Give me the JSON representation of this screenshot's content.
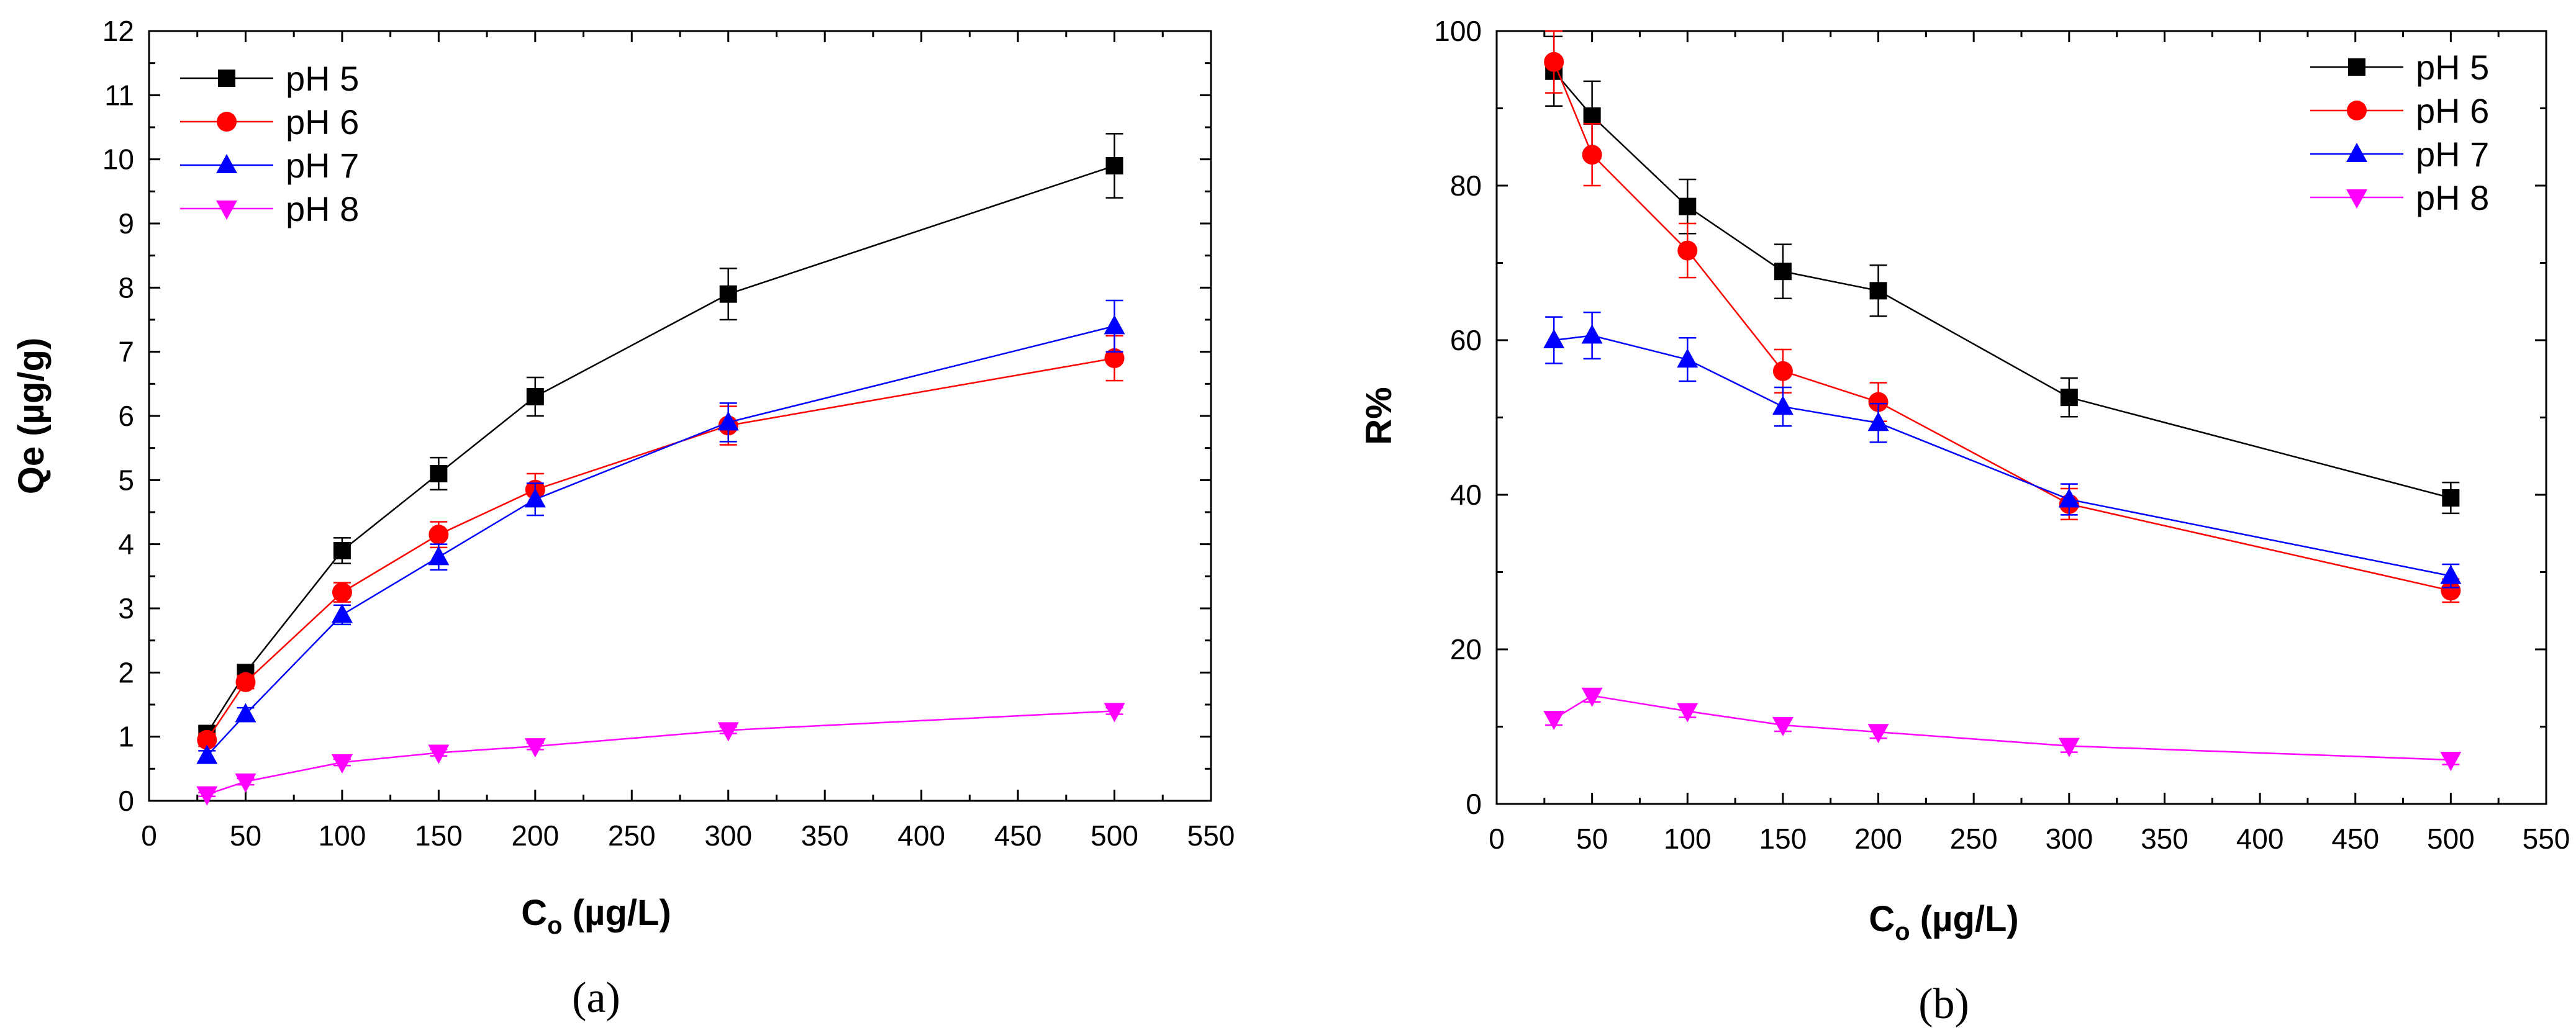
{
  "figure": {
    "panels": [
      {
        "caption": "(a)",
        "xlabel_main": "C",
        "xlabel_sub": "o",
        "xlabel_rest": " (µg/L)",
        "ylabel": "Qe (µg/g)"
      },
      {
        "caption": "(b)",
        "xlabel_main": "C",
        "xlabel_sub": "o",
        "xlabel_rest": " (µg/L)",
        "ylabel": "R%"
      }
    ]
  },
  "chart_data": [
    {
      "type": "line",
      "title": "",
      "caption": "(a)",
      "xlabel": "Co (µg/L)",
      "ylabel": "Qe (µg/g)",
      "xlim": [
        0,
        550
      ],
      "ylim": [
        0,
        12
      ],
      "x_ticks": [
        0,
        50,
        100,
        150,
        200,
        250,
        300,
        350,
        400,
        450,
        500,
        550
      ],
      "y_ticks": [
        0,
        1,
        2,
        3,
        4,
        5,
        6,
        7,
        8,
        9,
        10,
        11,
        12
      ],
      "legend_position": "top-left",
      "x": [
        30,
        50,
        100,
        150,
        200,
        300,
        500
      ],
      "series": [
        {
          "name": "pH 5",
          "color": "#000000",
          "marker": "square",
          "values": [
            1.05,
            2.0,
            3.9,
            5.1,
            6.3,
            7.9,
            9.9
          ],
          "errors": [
            0.1,
            0.1,
            0.2,
            0.25,
            0.3,
            0.4,
            0.5
          ]
        },
        {
          "name": "pH 6",
          "color": "#ff0000",
          "marker": "circle",
          "values": [
            0.95,
            1.85,
            3.25,
            4.15,
            4.85,
            5.85,
            6.9
          ],
          "errors": [
            0.1,
            0.1,
            0.15,
            0.2,
            0.25,
            0.3,
            0.35
          ]
        },
        {
          "name": "pH 7",
          "color": "#0000ff",
          "marker": "triangle-up",
          "values": [
            0.7,
            1.35,
            2.9,
            3.8,
            4.7,
            5.9,
            7.4
          ],
          "errors": [
            0.08,
            0.1,
            0.15,
            0.2,
            0.25,
            0.3,
            0.4
          ]
        },
        {
          "name": "pH 8",
          "color": "#ff00ff",
          "marker": "triangle-down",
          "values": [
            0.1,
            0.3,
            0.6,
            0.75,
            0.85,
            1.1,
            1.4
          ],
          "errors": [
            0.03,
            0.05,
            0.05,
            0.05,
            0.05,
            0.05,
            0.05
          ]
        }
      ]
    },
    {
      "type": "line",
      "title": "",
      "caption": "(b)",
      "xlabel": "Co (µg/L)",
      "ylabel": "R%",
      "xlim": [
        0,
        550
      ],
      "ylim": [
        0,
        100
      ],
      "x_ticks": [
        0,
        50,
        100,
        150,
        200,
        250,
        300,
        350,
        400,
        450,
        500,
        550
      ],
      "y_ticks": [
        0,
        20,
        40,
        60,
        80,
        100
      ],
      "legend_position": "top-right",
      "x": [
        30,
        50,
        100,
        150,
        200,
        300,
        500
      ],
      "series": [
        {
          "name": "pH 5",
          "color": "#000000",
          "marker": "square",
          "values": [
            94.8,
            89.0,
            77.3,
            68.9,
            66.4,
            52.6,
            39.6
          ],
          "errors": [
            4.5,
            4.5,
            3.5,
            3.5,
            3.3,
            2.5,
            2.0
          ]
        },
        {
          "name": "pH 6",
          "color": "#ff0000",
          "marker": "circle",
          "values": [
            96.0,
            84.0,
            71.6,
            56.0,
            52.0,
            38.8,
            27.6
          ],
          "errors": [
            4.0,
            4.0,
            3.5,
            2.8,
            2.5,
            2.0,
            1.5
          ]
        },
        {
          "name": "pH 7",
          "color": "#0000ff",
          "marker": "triangle-up",
          "values": [
            60.0,
            60.6,
            57.5,
            51.4,
            49.3,
            39.4,
            29.5
          ],
          "errors": [
            3.0,
            3.0,
            2.8,
            2.5,
            2.5,
            2.0,
            1.5
          ]
        },
        {
          "name": "pH 8",
          "color": "#ff00ff",
          "marker": "triangle-down",
          "values": [
            11.0,
            14.0,
            12.0,
            10.2,
            9.3,
            7.5,
            5.7
          ],
          "errors": [
            0.8,
            0.8,
            0.8,
            0.8,
            0.8,
            0.8,
            0.6
          ]
        }
      ]
    }
  ]
}
